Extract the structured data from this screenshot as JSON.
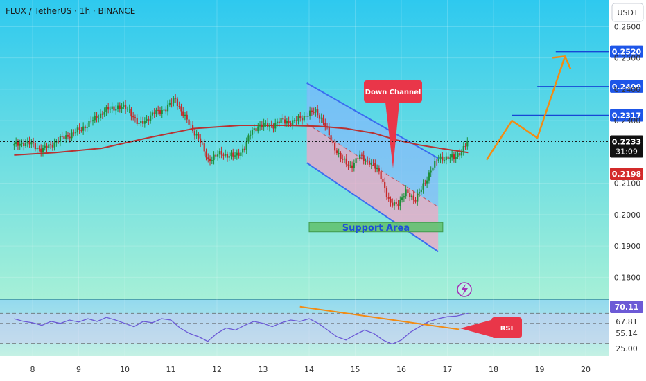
{
  "header": {
    "title": "FLUX / TetherUS · 1h · BINANCE",
    "currency_button": "USDT"
  },
  "chart_data": {
    "type": "candlestick",
    "x_ticks": [
      "8",
      "9",
      "10",
      "11",
      "12",
      "13",
      "14",
      "15",
      "16",
      "17",
      "18",
      "19",
      "20"
    ],
    "price_axis": {
      "ticks": [
        "0.2600",
        "0.2500",
        "0.2400",
        "0.2300",
        "0.2100",
        "0.2000",
        "0.1900",
        "0.1800"
      ],
      "ylim": [
        0.173,
        0.2685
      ]
    },
    "price_path": [
      [
        7.6,
        0.222
      ],
      [
        7.75,
        0.223
      ],
      [
        8.0,
        0.2225
      ],
      [
        8.2,
        0.2205
      ],
      [
        8.45,
        0.2228
      ],
      [
        8.7,
        0.2248
      ],
      [
        9.0,
        0.2268
      ],
      [
        9.3,
        0.23
      ],
      [
        9.55,
        0.233
      ],
      [
        9.85,
        0.2345
      ],
      [
        10.1,
        0.2335
      ],
      [
        10.3,
        0.2285
      ],
      [
        10.6,
        0.232
      ],
      [
        10.9,
        0.234
      ],
      [
        11.1,
        0.237
      ],
      [
        11.3,
        0.231
      ],
      [
        11.6,
        0.2245
      ],
      [
        11.8,
        0.2175
      ],
      [
        12.1,
        0.2195
      ],
      [
        12.4,
        0.2185
      ],
      [
        12.6,
        0.2215
      ],
      [
        12.75,
        0.2265
      ],
      [
        12.9,
        0.2285
      ],
      [
        13.2,
        0.2285
      ],
      [
        13.4,
        0.23
      ],
      [
        13.65,
        0.2295
      ],
      [
        13.9,
        0.2315
      ],
      [
        14.15,
        0.233
      ],
      [
        14.3,
        0.23
      ],
      [
        14.5,
        0.223
      ],
      [
        14.7,
        0.2175
      ],
      [
        14.9,
        0.2155
      ],
      [
        15.1,
        0.2185
      ],
      [
        15.3,
        0.217
      ],
      [
        15.55,
        0.213
      ],
      [
        15.75,
        0.203
      ],
      [
        15.95,
        0.204
      ],
      [
        16.1,
        0.207
      ],
      [
        16.3,
        0.205
      ],
      [
        16.5,
        0.2095
      ],
      [
        16.65,
        0.215
      ],
      [
        16.8,
        0.2175
      ],
      [
        17.0,
        0.2185
      ],
      [
        17.15,
        0.2178
      ],
      [
        17.3,
        0.2205
      ],
      [
        17.45,
        0.2233
      ]
    ],
    "moving_average": [
      [
        7.6,
        0.219
      ],
      [
        8.5,
        0.2198
      ],
      [
        9.5,
        0.2212
      ],
      [
        10.5,
        0.2245
      ],
      [
        11.5,
        0.2275
      ],
      [
        12.5,
        0.2285
      ],
      [
        13.5,
        0.2285
      ],
      [
        14.2,
        0.2282
      ],
      [
        14.8,
        0.2275
      ],
      [
        15.4,
        0.226
      ],
      [
        15.9,
        0.2238
      ],
      [
        16.4,
        0.2222
      ],
      [
        17.0,
        0.2208
      ],
      [
        17.45,
        0.2198
      ]
    ],
    "horizontal_levels": [
      {
        "price": 0.2317,
        "label": "0.2317",
        "from_x": 18.4
      },
      {
        "price": 0.2409,
        "label": "0.2409",
        "from_x": 18.95
      },
      {
        "price": 0.252,
        "label": "0.2520",
        "from_x": 19.35
      }
    ],
    "last_price": {
      "price": 0.2233,
      "label": "0.2233",
      "countdown": "31:09"
    },
    "ma_value": {
      "price": 0.2198,
      "label": "0.2198"
    },
    "channel": {
      "upper": [
        [
          13.95,
          0.242
        ],
        [
          16.8,
          0.218
        ]
      ],
      "lower": [
        [
          13.95,
          0.2165
        ],
        [
          16.8,
          0.1882
        ]
      ],
      "mid": [
        [
          13.95,
          0.229
        ],
        [
          16.8,
          0.2025
        ]
      ]
    },
    "projection": [
      [
        17.85,
        0.2175
      ],
      [
        18.4,
        0.23
      ],
      [
        18.95,
        0.2245
      ],
      [
        19.55,
        0.2505
      ]
    ],
    "arrow_tip": [
      19.55,
      0.2505
    ],
    "annotations": {
      "down_channel": "Down Channel",
      "support_area": "Support Area",
      "rsi_label": "RSI"
    },
    "support_zone": {
      "x": [
        14.0,
        16.9
      ],
      "price": [
        0.1945,
        0.1975
      ]
    },
    "rsi": {
      "ticks": [
        "67.81",
        "55.14",
        "25.00"
      ],
      "current": "70.11",
      "ylim": [
        10,
        85
      ],
      "levels": [
        70,
        55,
        25
      ],
      "series": [
        [
          7.6,
          62
        ],
        [
          7.8,
          58
        ],
        [
          8.0,
          56
        ],
        [
          8.2,
          52
        ],
        [
          8.4,
          58
        ],
        [
          8.6,
          55
        ],
        [
          8.8,
          60
        ],
        [
          9.0,
          57
        ],
        [
          9.2,
          62
        ],
        [
          9.4,
          58
        ],
        [
          9.6,
          64
        ],
        [
          9.8,
          60
        ],
        [
          10.0,
          55
        ],
        [
          10.2,
          50
        ],
        [
          10.4,
          58
        ],
        [
          10.6,
          56
        ],
        [
          10.8,
          62
        ],
        [
          11.0,
          60
        ],
        [
          11.2,
          48
        ],
        [
          11.4,
          40
        ],
        [
          11.6,
          35
        ],
        [
          11.8,
          28
        ],
        [
          12.0,
          40
        ],
        [
          12.2,
          48
        ],
        [
          12.4,
          45
        ],
        [
          12.6,
          52
        ],
        [
          12.8,
          58
        ],
        [
          13.0,
          55
        ],
        [
          13.2,
          50
        ],
        [
          13.4,
          56
        ],
        [
          13.6,
          60
        ],
        [
          13.8,
          58
        ],
        [
          14.0,
          62
        ],
        [
          14.2,
          55
        ],
        [
          14.4,
          45
        ],
        [
          14.6,
          35
        ],
        [
          14.8,
          30
        ],
        [
          15.0,
          38
        ],
        [
          15.2,
          45
        ],
        [
          15.4,
          40
        ],
        [
          15.6,
          30
        ],
        [
          15.8,
          24
        ],
        [
          16.0,
          30
        ],
        [
          16.2,
          42
        ],
        [
          16.4,
          50
        ],
        [
          16.6,
          58
        ],
        [
          16.8,
          62
        ],
        [
          17.0,
          65
        ],
        [
          17.2,
          66
        ],
        [
          17.45,
          70
        ]
      ],
      "trendline": [
        [
          13.8,
          80
        ],
        [
          17.25,
          46
        ]
      ]
    }
  },
  "colors": {
    "bg_top": "#2ec9ef",
    "bg_bottom": "#a6f0d7",
    "candle_up": "#1e8f3b",
    "candle_down": "#c62828",
    "ma": "#b83232",
    "level_line": "#1747d6",
    "projection": "#f38b13",
    "channel_line": "#3a6cf0",
    "channel_upper_fill": "#8ab4ff",
    "channel_lower_fill": "#f2a6c6",
    "callout": "#e93649",
    "rsi_line": "#6c5ad6",
    "rsi_fill": "#cfc8f5",
    "support_fill": "#63c271",
    "support_text": "#1e4fd8",
    "price_label_bg": "#1e56e8",
    "last_price_bg": "#111111",
    "ma_label_bg": "#d32a2a",
    "bolt": "#a234b8"
  }
}
